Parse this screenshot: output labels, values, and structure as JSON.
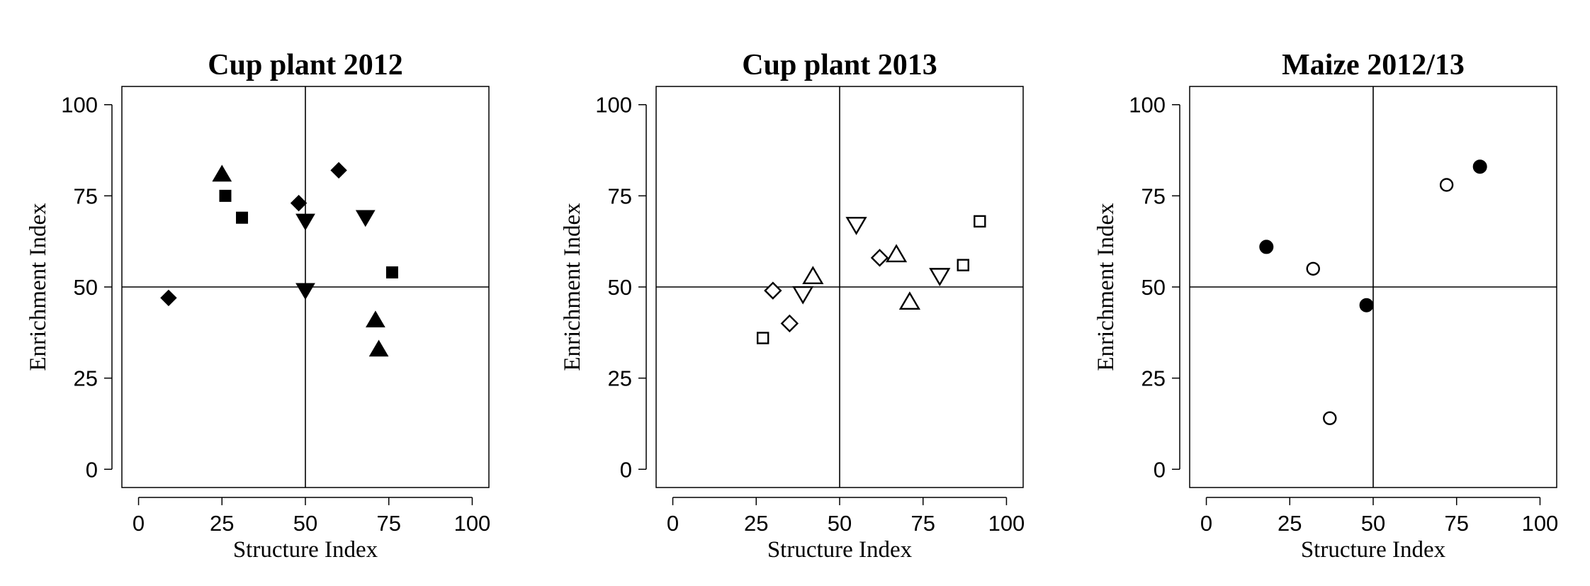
{
  "chart_data": [
    {
      "type": "scatter",
      "title": "Cup plant 2012",
      "xlabel": "Structure Index",
      "ylabel": "Enrichment Index",
      "xlim": [
        -5,
        105
      ],
      "ylim": [
        -5,
        105
      ],
      "xticks": [
        "0",
        "25",
        "50",
        "75",
        "100"
      ],
      "yticks": [
        "0",
        "25",
        "50",
        "75",
        "100"
      ],
      "reference_lines": {
        "x": 50,
        "y": 50
      },
      "grid": false,
      "legend": "none",
      "series": [
        {
          "marker": "triangle-up",
          "fill": "filled",
          "points": [
            [
              25,
              81
            ],
            [
              71,
              41
            ],
            [
              72,
              33
            ]
          ]
        },
        {
          "marker": "square",
          "fill": "filled",
          "points": [
            [
              26,
              75
            ],
            [
              31,
              69
            ],
            [
              76,
              54
            ]
          ]
        },
        {
          "marker": "diamond",
          "fill": "filled",
          "points": [
            [
              9,
              47
            ],
            [
              48,
              73
            ],
            [
              60,
              82
            ]
          ]
        },
        {
          "marker": "triangle-down",
          "fill": "filled",
          "points": [
            [
              50,
              68
            ],
            [
              50,
              49
            ],
            [
              68,
              69
            ]
          ]
        }
      ]
    },
    {
      "type": "scatter",
      "title": "Cup plant 2013",
      "xlabel": "Structure Index",
      "ylabel": "Enrichment Index",
      "xlim": [
        -5,
        105
      ],
      "ylim": [
        -5,
        105
      ],
      "xticks": [
        "0",
        "25",
        "50",
        "75",
        "100"
      ],
      "yticks": [
        "0",
        "25",
        "50",
        "75",
        "100"
      ],
      "reference_lines": {
        "x": 50,
        "y": 50
      },
      "grid": false,
      "legend": "none",
      "series": [
        {
          "marker": "triangle-up",
          "fill": "open",
          "points": [
            [
              42,
              53
            ],
            [
              67,
              59
            ],
            [
              71,
              46
            ]
          ]
        },
        {
          "marker": "square",
          "fill": "open",
          "points": [
            [
              27,
              36
            ],
            [
              87,
              56
            ],
            [
              92,
              68
            ]
          ]
        },
        {
          "marker": "diamond",
          "fill": "open",
          "points": [
            [
              30,
              49
            ],
            [
              35,
              40
            ],
            [
              62,
              58
            ]
          ]
        },
        {
          "marker": "triangle-down",
          "fill": "open",
          "points": [
            [
              39,
              48
            ],
            [
              55,
              67
            ],
            [
              80,
              53
            ]
          ]
        }
      ]
    },
    {
      "type": "scatter",
      "title": "Maize 2012/13",
      "xlabel": "Structure Index",
      "ylabel": "Enrichment Index",
      "xlim": [
        -5,
        105
      ],
      "ylim": [
        -5,
        105
      ],
      "xticks": [
        "0",
        "25",
        "50",
        "75",
        "100"
      ],
      "yticks": [
        "0",
        "25",
        "50",
        "75",
        "100"
      ],
      "reference_lines": {
        "x": 50,
        "y": 50
      },
      "grid": false,
      "legend": "none",
      "series": [
        {
          "marker": "circle",
          "fill": "filled",
          "points": [
            [
              18,
              61
            ],
            [
              48,
              45
            ],
            [
              82,
              83
            ]
          ]
        },
        {
          "marker": "circle",
          "fill": "open",
          "points": [
            [
              32,
              55
            ],
            [
              37,
              14
            ],
            [
              72,
              78
            ]
          ]
        }
      ]
    }
  ]
}
